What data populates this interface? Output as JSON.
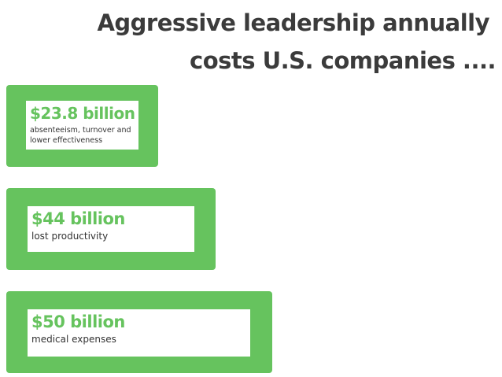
{
  "header": {
    "title_lines": [
      "Aggressive leadership annually",
      "costs U.S. companies ...."
    ]
  },
  "items": [
    {
      "amount": "$23.8 billion",
      "description": "absenteeism, turnover and lower effectiveness"
    },
    {
      "amount": "$44 billion",
      "description": "lost productivity"
    },
    {
      "amount": "$50 billion",
      "description": "medical expenses"
    }
  ]
}
